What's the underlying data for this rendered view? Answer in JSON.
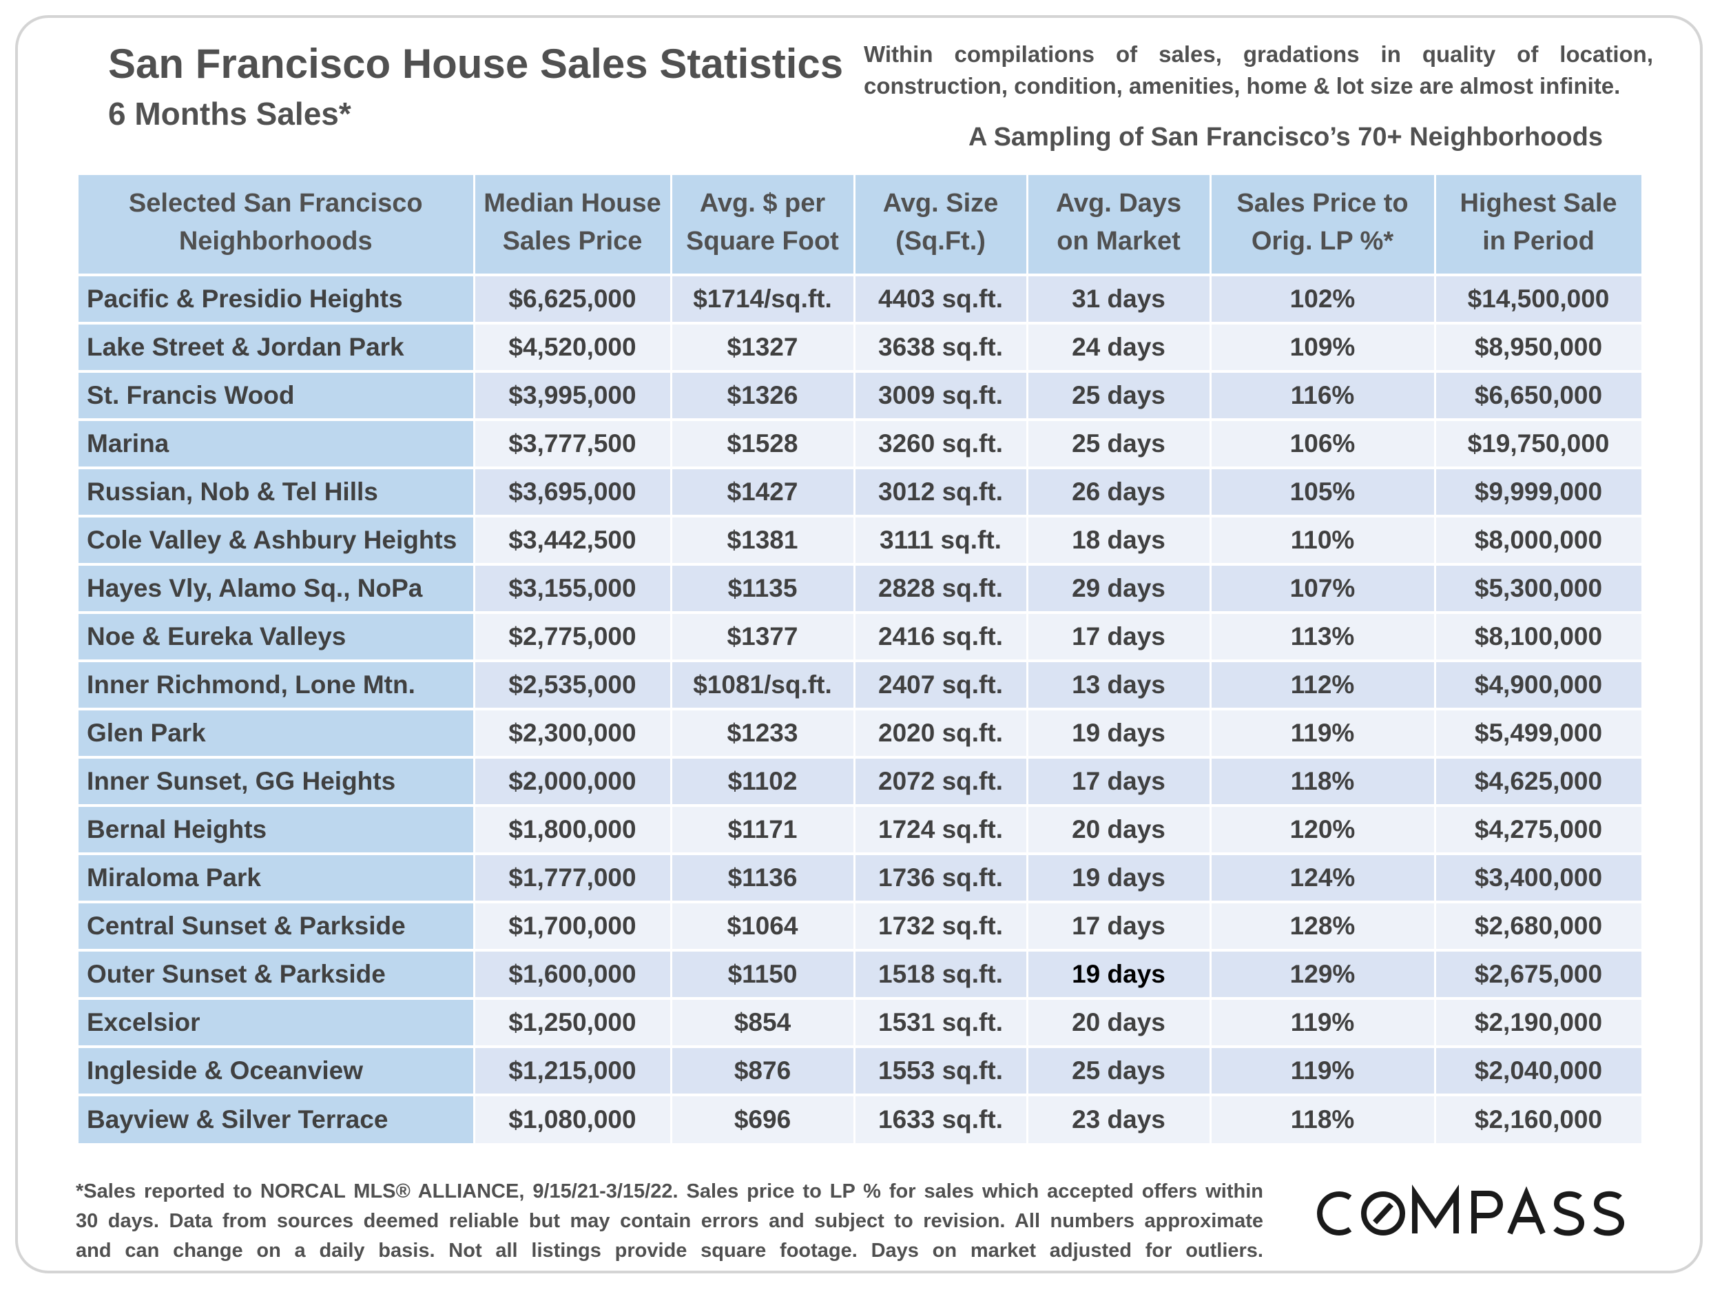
{
  "header": {
    "title": "San Francisco House Sales Statistics",
    "subtitle": "6 Months Sales*",
    "note_line1": "Within compilations of sales, gradations in quality of location,",
    "note_line2": "construction, condition, amenities, home & lot size are almost infinite.",
    "sampling": "A Sampling of San Francisco’s 70+ Neighborhoods"
  },
  "table": {
    "columns": [
      {
        "line1": "Selected San Francisco",
        "line2": "Neighborhoods"
      },
      {
        "line1": "Median House",
        "line2": "Sales Price"
      },
      {
        "line1": "Avg. $ per",
        "line2": "Square Foot"
      },
      {
        "line1": "Avg. Size",
        "line2": "(Sq.Ft.)"
      },
      {
        "line1": "Avg. Days",
        "line2": "on Market"
      },
      {
        "line1": "Sales Price to",
        "line2": "Orig. LP %*"
      },
      {
        "line1": "Highest Sale",
        "line2": "in Period"
      }
    ],
    "rows": [
      {
        "neighborhood": "Pacific & Presidio Heights",
        "median": "$6,625,000",
        "ppsf": "$1714/sq.ft.",
        "size": "4403 sq.ft.",
        "dom": "31 days",
        "sp_lp": "102%",
        "highest": "$14,500,000"
      },
      {
        "neighborhood": "Lake Street & Jordan Park",
        "median": "$4,520,000",
        "ppsf": "$1327",
        "size": "3638 sq.ft.",
        "dom": "24 days",
        "sp_lp": "109%",
        "highest": "$8,950,000"
      },
      {
        "neighborhood": "St. Francis Wood",
        "median": "$3,995,000",
        "ppsf": "$1326",
        "size": "3009 sq.ft.",
        "dom": "25 days",
        "sp_lp": "116%",
        "highest": "$6,650,000"
      },
      {
        "neighborhood": "Marina",
        "median": "$3,777,500",
        "ppsf": "$1528",
        "size": "3260 sq.ft.",
        "dom": "25 days",
        "sp_lp": "106%",
        "highest": "$19,750,000"
      },
      {
        "neighborhood": "Russian, Nob & Tel Hills",
        "median": "$3,695,000",
        "ppsf": "$1427",
        "size": "3012 sq.ft.",
        "dom": "26 days",
        "sp_lp": "105%",
        "highest": "$9,999,000"
      },
      {
        "neighborhood": "Cole Valley & Ashbury Heights",
        "median": "$3,442,500",
        "ppsf": "$1381",
        "size": "3111 sq.ft.",
        "dom": "18 days",
        "sp_lp": "110%",
        "highest": "$8,000,000"
      },
      {
        "neighborhood": "Hayes Vly, Alamo Sq., NoPa",
        "median": "$3,155,000",
        "ppsf": "$1135",
        "size": "2828 sq.ft.",
        "dom": "29 days",
        "sp_lp": "107%",
        "highest": "$5,300,000"
      },
      {
        "neighborhood": "Noe & Eureka Valleys",
        "median": "$2,775,000",
        "ppsf": "$1377",
        "size": "2416 sq.ft.",
        "dom": "17 days",
        "sp_lp": "113%",
        "highest": "$8,100,000"
      },
      {
        "neighborhood": "Inner Richmond, Lone Mtn.",
        "median": "$2,535,000",
        "ppsf": "$1081/sq.ft.",
        "size": "2407 sq.ft.",
        "dom": "13 days",
        "sp_lp": "112%",
        "highest": "$4,900,000"
      },
      {
        "neighborhood": "Glen Park",
        "median": "$2,300,000",
        "ppsf": "$1233",
        "size": "2020 sq.ft.",
        "dom": "19 days",
        "sp_lp": "119%",
        "highest": "$5,499,000"
      },
      {
        "neighborhood": "Inner Sunset, GG Heights",
        "median": "$2,000,000",
        "ppsf": "$1102",
        "size": "2072 sq.ft.",
        "dom": "17 days",
        "sp_lp": "118%",
        "highest": "$4,625,000"
      },
      {
        "neighborhood": "Bernal Heights",
        "median": "$1,800,000",
        "ppsf": "$1171",
        "size": "1724 sq.ft.",
        "dom": "20 days",
        "sp_lp": "120%",
        "highest": "$4,275,000"
      },
      {
        "neighborhood": "Miraloma Park",
        "median": "$1,777,000",
        "ppsf": "$1136",
        "size": "1736 sq.ft.",
        "dom": "19 days",
        "sp_lp": "124%",
        "highest": "$3,400,000"
      },
      {
        "neighborhood": "Central Sunset & Parkside",
        "median": "$1,700,000",
        "ppsf": "$1064",
        "size": "1732 sq.ft.",
        "dom": "17 days",
        "sp_lp": "128%",
        "highest": "$2,680,000"
      },
      {
        "neighborhood": "Outer Sunset & Parkside",
        "median": "$1,600,000",
        "ppsf": "$1150",
        "size": "1518 sq.ft.",
        "dom": "19 days",
        "sp_lp": "129%",
        "highest": "$2,675,000"
      },
      {
        "neighborhood": "Excelsior",
        "median": "$1,250,000",
        "ppsf": "$854",
        "size": "1531 sq.ft.",
        "dom": "20 days",
        "sp_lp": "119%",
        "highest": "$2,190,000"
      },
      {
        "neighborhood": "Ingleside & Oceanview",
        "median": "$1,215,000",
        "ppsf": "$876",
        "size": "1553 sq.ft.",
        "dom": "25 days",
        "sp_lp": "119%",
        "highest": "$2,040,000"
      },
      {
        "neighborhood": "Bayview & Silver Terrace",
        "median": "$1,080,000",
        "ppsf": "$696",
        "size": "1633 sq.ft.",
        "dom": "23 days",
        "sp_lp": "118%",
        "highest": "$2,160,000"
      }
    ]
  },
  "footnote": {
    "line1": "*Sales reported to NORCAL MLS® ALLIANCE, 9/15/21-3/15/22. Sales price to LP % for sales which accepted offers within",
    "line2": "30 days. Data from sources deemed reliable but may contain errors and subject to revision. All numbers approximate",
    "line3": "and can change on a daily basis. Not all listings provide square footage. Days on market adjusted for outliers."
  },
  "logo": {
    "text": "COMPASS",
    "icon": "compass-logo"
  },
  "colors": {
    "header_blue": "#bdd7ee",
    "row_dark": "#dae3f3",
    "row_light": "#eef2f9",
    "text": "#404040"
  }
}
